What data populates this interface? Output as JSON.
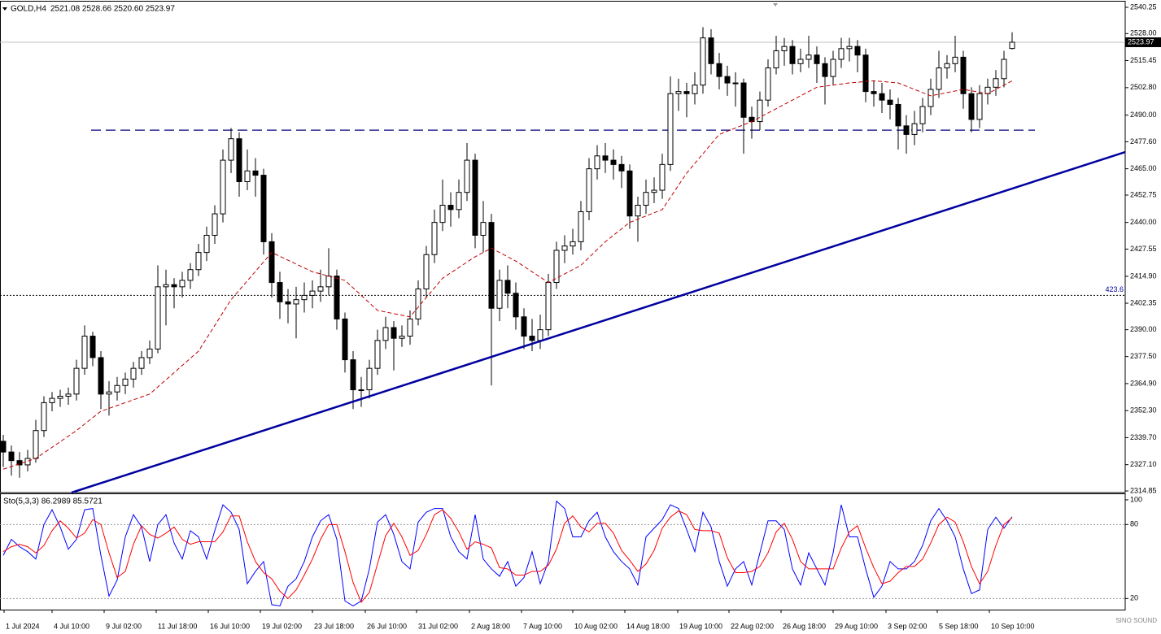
{
  "chart_data": {
    "type": "candlestick",
    "title": "GOLD,H4",
    "quote": "2521.08 2528.66 2520.60 2523.97",
    "open": [
      2338,
      2333,
      2329,
      2327,
      2330,
      2343,
      2356,
      2358,
      2359,
      2360,
      2372,
      2387,
      2377,
      2360,
      2361,
      2364,
      2367,
      2372,
      2377,
      2381,
      2410,
      2411,
      2410,
      2413,
      2418,
      2426,
      2434,
      2444,
      2469,
      2479,
      2459,
      2464,
      2462,
      2431,
      2412,
      2403,
      2402,
      2404,
      2406,
      2408,
      2410,
      2415,
      2395,
      2376,
      2362,
      2362,
      2372,
      2385,
      2391,
      2386,
      2387,
      2395,
      2409,
      2425,
      2440,
      2448,
      2446,
      2454,
      2469,
      2434,
      2440,
      2400,
      2413,
      2407,
      2396,
      2387,
      2385,
      2390,
      2412,
      2427,
      2429,
      2431,
      2445,
      2465,
      2471,
      2469,
      2467,
      2464,
      2443,
      2448,
      2454,
      2455,
      2467,
      2500,
      2501,
      2500,
      2504,
      2526,
      2514,
      2508,
      2505,
      2505,
      2489,
      2487,
      2497,
      2512,
      2520,
      2522,
      2514,
      2516,
      2518,
      2514,
      2508,
      2516,
      2521,
      2522,
      2518,
      2501,
      2500,
      2497,
      2495,
      2485,
      2481,
      2486,
      2494,
      2502,
      2512,
      2514,
      2517,
      2500,
      2488,
      2500,
      2503,
      2507,
      2521.08
    ],
    "high": [
      2341,
      2336,
      2333,
      2334,
      2348,
      2359,
      2361,
      2362,
      2363,
      2376,
      2392,
      2389,
      2380,
      2366,
      2368,
      2370,
      2375,
      2380,
      2385,
      2420,
      2418,
      2414,
      2417,
      2421,
      2430,
      2438,
      2448,
      2474,
      2484,
      2482,
      2474,
      2470,
      2465,
      2435,
      2417,
      2409,
      2410,
      2412,
      2413,
      2418,
      2428,
      2418,
      2398,
      2380,
      2368,
      2376,
      2390,
      2396,
      2394,
      2392,
      2399,
      2413,
      2429,
      2446,
      2460,
      2454,
      2460,
      2477,
      2472,
      2450,
      2444,
      2418,
      2420,
      2412,
      2400,
      2395,
      2397,
      2416,
      2431,
      2434,
      2437,
      2450,
      2470,
      2476,
      2477,
      2474,
      2471,
      2467,
      2452,
      2460,
      2461,
      2472,
      2508,
      2507,
      2505,
      2510,
      2531,
      2530,
      2519,
      2513,
      2510,
      2507,
      2494,
      2501,
      2516,
      2527,
      2526,
      2525,
      2521,
      2527,
      2522,
      2517,
      2520,
      2526,
      2526,
      2525,
      2521,
      2506,
      2505,
      2502,
      2498,
      2490,
      2492,
      2498,
      2507,
      2520,
      2518,
      2527,
      2520,
      2503,
      2504,
      2507,
      2511,
      2520,
      2528.66
    ],
    "low": [
      2326,
      2322,
      2321,
      2324,
      2328,
      2340,
      2352,
      2354,
      2355,
      2357,
      2369,
      2373,
      2353,
      2350,
      2357,
      2360,
      2363,
      2369,
      2374,
      2379,
      2392,
      2400,
      2405,
      2409,
      2415,
      2422,
      2430,
      2440,
      2463,
      2452,
      2455,
      2452,
      2425,
      2405,
      2395,
      2393,
      2386,
      2398,
      2400,
      2403,
      2406,
      2390,
      2370,
      2353,
      2354,
      2358,
      2369,
      2381,
      2371,
      2382,
      2383,
      2392,
      2405,
      2421,
      2436,
      2438,
      2442,
      2450,
      2428,
      2426,
      2364,
      2394,
      2400,
      2390,
      2381,
      2380,
      2381,
      2387,
      2409,
      2421,
      2425,
      2427,
      2441,
      2460,
      2463,
      2460,
      2456,
      2437,
      2431,
      2444,
      2449,
      2451,
      2464,
      2492,
      2489,
      2495,
      2500,
      2509,
      2502,
      2499,
      2494,
      2472,
      2479,
      2483,
      2494,
      2509,
      2513,
      2509,
      2510,
      2512,
      2505,
      2495,
      2504,
      2512,
      2515,
      2510,
      2496,
      2494,
      2491,
      2488,
      2474,
      2472,
      2476,
      2482,
      2490,
      2498,
      2507,
      2510,
      2493,
      2482,
      2484,
      2495,
      2499,
      2503,
      2520.6
    ],
    "close": [
      2333,
      2329,
      2327,
      2330,
      2343,
      2356,
      2358,
      2359,
      2360,
      2372,
      2387,
      2377,
      2360,
      2361,
      2364,
      2367,
      2372,
      2377,
      2381,
      2410,
      2411,
      2410,
      2413,
      2418,
      2426,
      2434,
      2444,
      2469,
      2479,
      2459,
      2464,
      2462,
      2431,
      2412,
      2403,
      2402,
      2404,
      2406,
      2408,
      2410,
      2415,
      2395,
      2376,
      2362,
      2362,
      2372,
      2385,
      2391,
      2386,
      2387,
      2395,
      2409,
      2425,
      2440,
      2448,
      2446,
      2454,
      2469,
      2434,
      2440,
      2400,
      2413,
      2407,
      2396,
      2387,
      2385,
      2390,
      2412,
      2427,
      2429,
      2431,
      2445,
      2465,
      2471,
      2469,
      2467,
      2464,
      2443,
      2448,
      2454,
      2455,
      2467,
      2500,
      2501,
      2500,
      2504,
      2526,
      2514,
      2508,
      2505,
      2505,
      2489,
      2487,
      2497,
      2512,
      2520,
      2522,
      2514,
      2516,
      2518,
      2514,
      2508,
      2516,
      2521,
      2522,
      2518,
      2501,
      2500,
      2497,
      2495,
      2485,
      2481,
      2486,
      2494,
      2502,
      2512,
      2514,
      2517,
      2500,
      2488,
      2500,
      2503,
      2507,
      2516,
      2523.97
    ],
    "up_color": "#ffffff",
    "down_color": "#000000",
    "outline_color": "#000000",
    "xlim": [
      -0.4,
      137.9
    ],
    "xticks": [
      {
        "value": 0.1,
        "label": "1 Jul 2024"
      },
      {
        "value": 6,
        "label": "4 Jul 10:00"
      },
      {
        "value": 12.4,
        "label": "9 Jul 02:00"
      },
      {
        "value": 18.8,
        "label": "11 Jul 18:00"
      },
      {
        "value": 25.2,
        "label": "16 Jul 10:00"
      },
      {
        "value": 31.6,
        "label": "19 Jul 02:00"
      },
      {
        "value": 38,
        "label": "23 Jul 18:00"
      },
      {
        "value": 44.5,
        "label": "26 Jul 10:00"
      },
      {
        "value": 50.8,
        "label": "31 Jul 02:00"
      },
      {
        "value": 57.3,
        "label": "2 Aug 18:00"
      },
      {
        "value": 63.7,
        "label": "7 Aug 10:00"
      },
      {
        "value": 70,
        "label": "10 Aug 02:00"
      },
      {
        "value": 76.4,
        "label": "14 Aug 18:00"
      },
      {
        "value": 82.9,
        "label": "19 Aug 10:00"
      },
      {
        "value": 89.2,
        "label": "22 Aug 02:00"
      },
      {
        "value": 95.6,
        "label": "26 Aug 18:00"
      },
      {
        "value": 102,
        "label": "29 Aug 10:00"
      },
      {
        "value": 108.5,
        "label": "3 Sep 02:00"
      },
      {
        "value": 114.8,
        "label": "5 Sep 18:00"
      },
      {
        "value": 121.2,
        "label": "10 Sep 10:00"
      }
    ],
    "ylim": [
      2314.1,
      2542.9
    ],
    "yticks": [
      2540.25,
      {
        "value": 2528,
        "label": "2528.00"
      },
      2515.45,
      {
        "value": 2502.8,
        "label": "2502.80"
      },
      {
        "value": 2490,
        "label": "2490.00"
      },
      {
        "value": 2477.6,
        "label": "2477.60"
      },
      {
        "value": 2465,
        "label": "2465.00"
      },
      2452.75,
      {
        "value": 2440,
        "label": "2440.00"
      },
      2427.55,
      {
        "value": 2414.9,
        "label": "2414.90"
      },
      2402.35,
      {
        "value": 2390,
        "label": "2390.00"
      },
      {
        "value": 2377.5,
        "label": "2377.50"
      },
      {
        "value": 2364.9,
        "label": "2364.90"
      },
      {
        "value": 2352.3,
        "label": "2352.30"
      },
      {
        "value": 2339.7,
        "label": "2339.70"
      },
      {
        "value": 2327.1,
        "label": "2327.10"
      },
      2314.85
    ],
    "moving_average": {
      "color": "#c00000",
      "x": [
        0,
        4,
        9,
        12,
        18,
        24,
        28,
        33,
        38,
        42,
        46,
        50,
        54,
        58,
        60,
        63,
        67,
        71,
        74,
        77,
        81,
        84,
        88,
        92,
        96,
        100,
        104,
        107,
        110,
        114,
        118,
        121,
        124
      ],
      "values": [
        2325,
        2330,
        2343,
        2352,
        2360,
        2380,
        2404,
        2426,
        2417,
        2413,
        2399,
        2396,
        2414,
        2424,
        2428,
        2422,
        2412,
        2420,
        2431,
        2440,
        2446,
        2463,
        2481,
        2487,
        2495,
        2503,
        2505,
        2506,
        2505,
        2499,
        2502,
        2500,
        2506
      ]
    },
    "trendline": {
      "color": "#0000a0",
      "x": [
        8.4,
        137.9
      ],
      "values": [
        2314.1,
        2472.8
      ]
    },
    "resistance": {
      "color": "#000080",
      "x": [
        10.8,
        126.8
      ],
      "values": [
        2483,
        2483
      ]
    },
    "level_line": {
      "value": 2406,
      "label": "423.6",
      "color": "#0000a0"
    },
    "stochastic": {
      "type": "line",
      "title": "Sto(5,3,3) 86.2989 85.5721",
      "ylim": [
        11,
        104.6
      ],
      "yticks": [
        100,
        80,
        20
      ],
      "levels": [
        80,
        20
      ],
      "series": [
        {
          "color": "#0000ff",
          "values": [
            55,
            68,
            62,
            58,
            52,
            80,
            92,
            78,
            60,
            68,
            92,
            93,
            55,
            22,
            35,
            70,
            88,
            78,
            50,
            80,
            88,
            65,
            52,
            75,
            70,
            52,
            75,
            96,
            90,
            76,
            32,
            42,
            50,
            15,
            14,
            30,
            36,
            50,
            70,
            83,
            88,
            68,
            18,
            14,
            18,
            44,
            82,
            88,
            72,
            50,
            44,
            82,
            90,
            93,
            93,
            70,
            58,
            52,
            88,
            52,
            44,
            38,
            50,
            30,
            37,
            58,
            32,
            50,
            99,
            93,
            70,
            70,
            83,
            90,
            70,
            58,
            50,
            44,
            31,
            70,
            77,
            84,
            96,
            93,
            76,
            58,
            90,
            78,
            50,
            30,
            44,
            50,
            31,
            57,
            83,
            83,
            76,
            44,
            31,
            57,
            44,
            31,
            57,
            96,
            70,
            70,
            44,
            21,
            30,
            50,
            44,
            44,
            50,
            63,
            83,
            93,
            83,
            70,
            44,
            24,
            27,
            76,
            86,
            77,
            86.3
          ]
        },
        {
          "color": "#ff0000",
          "values": [
            58,
            62,
            64,
            62,
            57,
            63,
            75,
            83,
            77,
            69,
            73,
            84,
            80,
            57,
            37,
            42,
            64,
            79,
            72,
            69,
            73,
            78,
            68,
            64,
            66,
            66,
            66,
            74,
            87,
            87,
            66,
            50,
            41,
            36,
            26,
            20,
            27,
            39,
            52,
            68,
            80,
            80,
            58,
            33,
            17,
            25,
            48,
            71,
            81,
            70,
            55,
            59,
            72,
            88,
            92,
            85,
            74,
            60,
            66,
            64,
            61,
            45,
            44,
            39,
            39,
            42,
            42,
            47,
            60,
            81,
            87,
            78,
            74,
            81,
            81,
            73,
            59,
            51,
            42,
            48,
            59,
            77,
            86,
            91,
            88,
            76,
            75,
            75,
            73,
            53,
            41,
            41,
            42,
            46,
            57,
            74,
            81,
            68,
            50,
            44,
            44,
            44,
            44,
            61,
            74,
            79,
            61,
            45,
            32,
            34,
            41,
            46,
            46,
            52,
            65,
            80,
            86,
            82,
            66,
            46,
            32,
            42,
            63,
            80,
            85.57
          ]
        }
      ]
    }
  },
  "watermark": "SINO SOUND"
}
